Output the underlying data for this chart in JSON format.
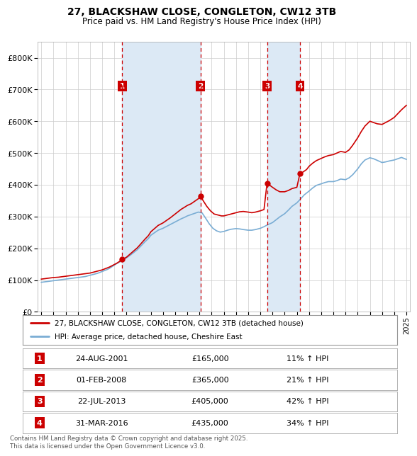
{
  "title": "27, BLACKSHAW CLOSE, CONGLETON, CW12 3TB",
  "subtitle": "Price paid vs. HM Land Registry's House Price Index (HPI)",
  "footer": "Contains HM Land Registry data © Crown copyright and database right 2025.\nThis data is licensed under the Open Government Licence v3.0.",
  "legend_property": "27, BLACKSHAW CLOSE, CONGLETON, CW12 3TB (detached house)",
  "legend_hpi": "HPI: Average price, detached house, Cheshire East",
  "property_color": "#cc0000",
  "hpi_color": "#7aadd4",
  "vline_color": "#cc0000",
  "marker_bg": "#cc0000",
  "shade_color": "#dce9f5",
  "plot_bg": "#ffffff",
  "grid_color": "#cccccc",
  "ylim": [
    0,
    850000
  ],
  "yticks": [
    0,
    100000,
    200000,
    300000,
    400000,
    500000,
    600000,
    700000,
    800000
  ],
  "xlim_start": 1994.7,
  "xlim_end": 2025.3,
  "transactions": [
    {
      "num": 1,
      "date": "24-AUG-2001",
      "year": 2001.65,
      "price": 165000,
      "hpi_pct": "11% ↑ HPI"
    },
    {
      "num": 2,
      "date": "01-FEB-2008",
      "year": 2008.08,
      "price": 365000,
      "hpi_pct": "21% ↑ HPI"
    },
    {
      "num": 3,
      "date": "22-JUL-2013",
      "year": 2013.55,
      "price": 405000,
      "hpi_pct": "42% ↑ HPI"
    },
    {
      "num": 4,
      "date": "31-MAR-2016",
      "year": 2016.25,
      "price": 435000,
      "hpi_pct": "34% ↑ HPI"
    }
  ],
  "property_line": {
    "x": [
      1995.0,
      1995.2,
      1995.4,
      1995.6,
      1995.8,
      1996.0,
      1996.2,
      1996.4,
      1996.6,
      1996.8,
      1997.0,
      1997.2,
      1997.4,
      1997.6,
      1997.8,
      1998.0,
      1998.2,
      1998.4,
      1998.6,
      1998.8,
      1999.0,
      1999.2,
      1999.4,
      1999.6,
      1999.8,
      2000.0,
      2000.2,
      2000.4,
      2000.6,
      2000.8,
      2001.0,
      2001.2,
      2001.4,
      2001.65,
      2002.0,
      2002.3,
      2002.6,
      2002.9,
      2003.2,
      2003.5,
      2003.8,
      2004.0,
      2004.3,
      2004.6,
      2005.0,
      2005.3,
      2005.6,
      2005.9,
      2006.2,
      2006.5,
      2006.8,
      2007.0,
      2007.3,
      2007.6,
      2007.9,
      2008.08,
      2008.3,
      2008.6,
      2008.9,
      2009.2,
      2009.5,
      2009.8,
      2010.0,
      2010.3,
      2010.6,
      2011.0,
      2011.3,
      2011.6,
      2012.0,
      2012.3,
      2012.6,
      2013.0,
      2013.3,
      2013.55,
      2014.0,
      2014.3,
      2014.6,
      2015.0,
      2015.3,
      2015.6,
      2016.0,
      2016.25,
      2016.5,
      2016.8,
      2017.0,
      2017.3,
      2017.6,
      2018.0,
      2018.3,
      2018.6,
      2019.0,
      2019.3,
      2019.6,
      2020.0,
      2020.3,
      2020.6,
      2021.0,
      2021.3,
      2021.6,
      2022.0,
      2022.3,
      2022.6,
      2023.0,
      2023.3,
      2023.6,
      2024.0,
      2024.3,
      2024.6,
      2025.0
    ],
    "y": [
      103000,
      104000,
      105000,
      106000,
      107000,
      108000,
      108500,
      109000,
      110000,
      111000,
      112000,
      113000,
      114000,
      115000,
      116000,
      117000,
      118000,
      119000,
      120000,
      121000,
      122000,
      124000,
      126000,
      128000,
      130000,
      132000,
      135000,
      138000,
      141000,
      145000,
      149000,
      153000,
      158000,
      165000,
      172000,
      182000,
      192000,
      202000,
      215000,
      228000,
      240000,
      252000,
      262000,
      272000,
      280000,
      288000,
      296000,
      305000,
      314000,
      323000,
      330000,
      335000,
      340000,
      348000,
      356000,
      365000,
      350000,
      332000,
      318000,
      308000,
      305000,
      302000,
      302000,
      305000,
      308000,
      312000,
      315000,
      316000,
      314000,
      312000,
      314000,
      318000,
      322000,
      405000,
      392000,
      384000,
      378000,
      378000,
      382000,
      388000,
      392000,
      435000,
      440000,
      448000,
      458000,
      468000,
      476000,
      483000,
      488000,
      492000,
      495000,
      500000,
      505000,
      502000,
      510000,
      525000,
      548000,
      568000,
      585000,
      600000,
      596000,
      592000,
      590000,
      596000,
      602000,
      612000,
      624000,
      636000,
      650000
    ]
  },
  "hpi_line": {
    "x": [
      1995.0,
      1995.2,
      1995.4,
      1995.6,
      1995.8,
      1996.0,
      1996.2,
      1996.4,
      1996.6,
      1996.8,
      1997.0,
      1997.2,
      1997.4,
      1997.6,
      1997.8,
      1998.0,
      1998.2,
      1998.4,
      1998.6,
      1998.8,
      1999.0,
      1999.2,
      1999.4,
      1999.6,
      1999.8,
      2000.0,
      2000.2,
      2000.4,
      2000.6,
      2000.8,
      2001.0,
      2001.2,
      2001.4,
      2001.6,
      2001.8,
      2002.0,
      2002.3,
      2002.6,
      2002.9,
      2003.2,
      2003.5,
      2003.8,
      2004.0,
      2004.3,
      2004.6,
      2005.0,
      2005.3,
      2005.6,
      2005.9,
      2006.2,
      2006.5,
      2006.8,
      2007.0,
      2007.3,
      2007.6,
      2007.9,
      2008.2,
      2008.5,
      2008.8,
      2009.1,
      2009.4,
      2009.7,
      2010.0,
      2010.3,
      2010.6,
      2011.0,
      2011.3,
      2011.6,
      2012.0,
      2012.3,
      2012.6,
      2013.0,
      2013.3,
      2013.6,
      2014.0,
      2014.3,
      2014.6,
      2015.0,
      2015.3,
      2015.6,
      2016.0,
      2016.3,
      2016.6,
      2017.0,
      2017.3,
      2017.6,
      2018.0,
      2018.3,
      2018.6,
      2019.0,
      2019.3,
      2019.6,
      2020.0,
      2020.3,
      2020.6,
      2021.0,
      2021.3,
      2021.6,
      2022.0,
      2022.3,
      2022.6,
      2023.0,
      2023.3,
      2023.6,
      2024.0,
      2024.3,
      2024.6,
      2025.0
    ],
    "y": [
      93000,
      94000,
      95000,
      96000,
      97000,
      98000,
      99000,
      100000,
      101000,
      102000,
      103000,
      104000,
      105000,
      106000,
      107000,
      108000,
      109000,
      110000,
      111000,
      113000,
      115000,
      117000,
      119000,
      121000,
      124000,
      127000,
      130000,
      133000,
      137000,
      142000,
      147000,
      152000,
      156000,
      160000,
      165000,
      170000,
      178000,
      187000,
      196000,
      208000,
      220000,
      231000,
      241000,
      249000,
      257000,
      263000,
      269000,
      275000,
      281000,
      287000,
      293000,
      298000,
      302000,
      306000,
      310000,
      314000,
      312000,
      295000,
      277000,
      263000,
      255000,
      251000,
      253000,
      257000,
      260000,
      262000,
      261000,
      259000,
      257000,
      257000,
      259000,
      263000,
      268000,
      274000,
      281000,
      290000,
      299000,
      309000,
      320000,
      332000,
      343000,
      355000,
      368000,
      380000,
      390000,
      398000,
      403000,
      407000,
      410000,
      410000,
      413000,
      418000,
      416000,
      422000,
      432000,
      450000,
      466000,
      478000,
      485000,
      482000,
      477000,
      470000,
      472000,
      475000,
      478000,
      482000,
      486000,
      480000
    ]
  }
}
